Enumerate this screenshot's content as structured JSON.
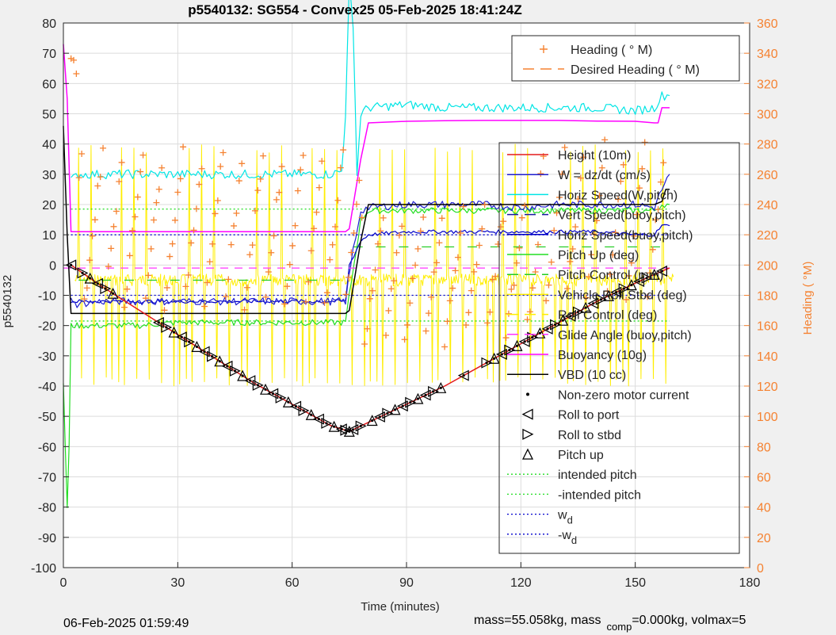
{
  "colors": {
    "heading": "#f58231",
    "height": "#e41a1c",
    "w": "#1f1fd0",
    "horiz_speed_w": "#00e5e5",
    "vert_speed_buoy": "#1a1aa0",
    "horiz_speed_buoy": "#0000c8",
    "pitch_up": "#22dd22",
    "pitch_control": "#22cc22",
    "roll": "#ffee00",
    "glide": "#ff33ff",
    "buoyancy": "#ff00ff",
    "vbd": "#000000",
    "intended": "#22dd22",
    "wd": "#0000cc"
  },
  "chart_data": {
    "type": "line",
    "title": "p5540132: SG554 - Convex25 05-Feb-2025 18:41:24Z",
    "xlabel": "Time (minutes)",
    "ylabel": "p5540132",
    "y2label": "Heading (  °M)",
    "xlim": [
      0,
      180
    ],
    "ylim": [
      -100,
      80
    ],
    "y2lim": [
      0,
      360
    ],
    "xticks": [
      "0",
      "30",
      "60",
      "90",
      "120",
      "150",
      "180"
    ],
    "yticks": [
      "80",
      "70",
      "60",
      "50",
      "40",
      "30",
      "20",
      "10",
      "0",
      "-10",
      "-20",
      "-30",
      "-40",
      "-50",
      "-60",
      "-70",
      "-80",
      "-90",
      "-100"
    ],
    "y2ticks": [
      "360",
      "340",
      "320",
      "300",
      "280",
      "260",
      "240",
      "220",
      "200",
      "180",
      "160",
      "140",
      "120",
      "100",
      "80",
      "60",
      "40",
      "20",
      "0"
    ],
    "grid": true,
    "legend_heading": [
      {
        "label": "Heading (  ° M)",
        "style": "plus",
        "color": "#f58231"
      },
      {
        "label": "Desired Heading (    ° M)",
        "style": "dash",
        "color": "#f58231"
      }
    ],
    "legend_main": [
      {
        "label": "Height (10m)",
        "style": "line",
        "color": "#e41a1c"
      },
      {
        "label": "W = dz/dt (cm/s)",
        "style": "line",
        "color": "#1f1fd0"
      },
      {
        "label": "Horiz Speed(W,pitch)",
        "style": "line",
        "color": "#00e5e5"
      },
      {
        "label": "Vert Speed(buoy,pitch)",
        "style": "dash",
        "color": "#1a1aa0"
      },
      {
        "label": "Horiz Speed(buoy,pitch)",
        "style": "line",
        "color": "#0000c8"
      },
      {
        "label": "Pitch Up (deg)",
        "style": "line",
        "color": "#22dd22"
      },
      {
        "label": "Pitch Control (mm)",
        "style": "dash",
        "color": "#22cc22"
      },
      {
        "label": "Vehicle Roll Stbd (deg)",
        "style": "line",
        "color": "#ffee00"
      },
      {
        "label": "Roll Control (deg)",
        "style": "dash",
        "color": "#ffee00"
      },
      {
        "label": "Glide Angle (buoy,pitch)",
        "style": "dash",
        "color": "#ff33ff"
      },
      {
        "label": "Buoyancy (10g)",
        "style": "line",
        "color": "#ff00ff"
      },
      {
        "label": "VBD (10 cc)",
        "style": "line",
        "color": "#000000"
      },
      {
        "label": "Non-zero motor current",
        "style": "dot",
        "color": "#000000"
      },
      {
        "label": "Roll to port",
        "style": "tri-left",
        "color": "#000000"
      },
      {
        "label": "Roll to stbd",
        "style": "tri-right",
        "color": "#000000"
      },
      {
        "label": "Pitch up",
        "style": "tri-up",
        "color": "#000000"
      },
      {
        "label": "intended pitch",
        "style": "dotted",
        "color": "#22dd22"
      },
      {
        "label": "-intended pitch",
        "style": "dotted",
        "color": "#22dd22"
      },
      {
        "label": "w",
        "sub": "d",
        "style": "dotted",
        "color": "#0000cc"
      },
      {
        "label": "-w",
        "sub": "d",
        "style": "dotted",
        "color": "#0000cc"
      }
    ],
    "reference_lines": {
      "intended_pitch": 18.5,
      "neg_intended_pitch": -18.5,
      "wd": 10,
      "neg_wd": -10
    },
    "series": [
      {
        "key": "height",
        "x": [
          2,
          10,
          20,
          30,
          40,
          50,
          60,
          70,
          75,
          80,
          90,
          100,
          110,
          120,
          130,
          140,
          150,
          157,
          159
        ],
        "y": [
          0,
          -7,
          -15,
          -23,
          -31,
          -39,
          -46,
          -53,
          -55,
          -52,
          -46,
          -40,
          -33,
          -26,
          -19,
          -12,
          -6,
          -2,
          -1
        ]
      },
      {
        "key": "buoyancy",
        "x": [
          0,
          1,
          2,
          3,
          74,
          75,
          78,
          80,
          90,
          100,
          110,
          120,
          130,
          140,
          150,
          155,
          156,
          157,
          159
        ],
        "y": [
          73,
          55,
          11,
          11,
          11,
          12,
          35,
          47,
          47.5,
          47.7,
          47.8,
          47.8,
          47.8,
          47.6,
          47.5,
          47,
          47,
          52,
          52
        ]
      },
      {
        "key": "vbd",
        "x": [
          0,
          1,
          2,
          3,
          74,
          75,
          78,
          80,
          100,
          120,
          140,
          155,
          157,
          158,
          159
        ],
        "y": [
          46,
          10,
          -16,
          -16,
          -16,
          -15,
          8,
          20,
          20,
          20,
          20,
          20,
          21,
          25,
          25
        ]
      },
      {
        "key": "horiz_speed_w",
        "x": [
          2,
          4,
          10,
          20,
          30,
          40,
          50,
          60,
          70,
          73,
          74,
          75,
          76,
          77,
          78,
          80,
          90,
          100,
          110,
          120,
          130,
          140,
          150,
          155,
          157,
          159
        ],
        "y": [
          28,
          30,
          30,
          30,
          30,
          30,
          30,
          30,
          30,
          31,
          50,
          92,
          80,
          30,
          50,
          52,
          53,
          52,
          52,
          52,
          52,
          52,
          51,
          52,
          56,
          56
        ]
      },
      {
        "key": "horiz_speed_buoy",
        "x": [
          2,
          3,
          10,
          20,
          30,
          40,
          50,
          60,
          70,
          74,
          75,
          78,
          80,
          90,
          100,
          110,
          120,
          130,
          140,
          150,
          155,
          157,
          159
        ],
        "y": [
          -12,
          -12,
          -12,
          -12,
          -12,
          -12,
          -12,
          -12,
          -12,
          -12,
          0,
          8,
          10,
          11,
          11,
          11,
          11,
          11,
          11,
          10,
          10,
          13,
          13
        ]
      },
      {
        "key": "w",
        "x": [
          2,
          3,
          10,
          20,
          30,
          40,
          50,
          60,
          70,
          74,
          76,
          78,
          80,
          90,
          100,
          110,
          120,
          130,
          140,
          150,
          155,
          157,
          159
        ],
        "y": [
          -10,
          -13,
          -12,
          -12,
          -12,
          -12,
          -12,
          -12,
          -12,
          -12,
          5,
          18,
          19,
          20,
          20,
          20,
          19,
          20,
          20,
          20,
          19,
          25,
          30
        ]
      },
      {
        "key": "pitch_up",
        "x": [
          0,
          1,
          1.5,
          2,
          3,
          10,
          20,
          30,
          40,
          50,
          60,
          70,
          74,
          75,
          78,
          80,
          90,
          100,
          110,
          120,
          130,
          140,
          150,
          155,
          157,
          159
        ],
        "y": [
          -40,
          -80,
          -60,
          -20,
          -20,
          -20,
          -20,
          -19,
          -19,
          -19,
          -19,
          -19,
          -19,
          -10,
          15,
          18,
          18,
          18,
          18,
          18,
          18,
          18,
          18,
          18,
          20,
          20
        ]
      },
      {
        "key": "glide",
        "x": [
          0,
          1,
          2,
          3,
          74,
          75,
          78,
          80,
          100,
          120,
          140,
          155,
          157,
          159
        ],
        "y": [
          -1,
          -1,
          -1,
          -1,
          -1,
          -1,
          -1,
          -1,
          -1,
          -1,
          -1,
          -1,
          -1,
          -1
        ]
      },
      {
        "key": "roll_x_start",
        "x": [
          4,
          164
        ],
        "y": [
          0,
          0
        ]
      }
    ],
    "heading_points_note": "scattered orange plus markers between about 110 and 345 degrees M"
  },
  "footer": {
    "date": "06-Feb-2025 01:59:49",
    "mass_text_a": "mass=55.058kg, mass",
    "mass_sub": "comp",
    "mass_text_b": "=0.000kg, volmax=5"
  }
}
